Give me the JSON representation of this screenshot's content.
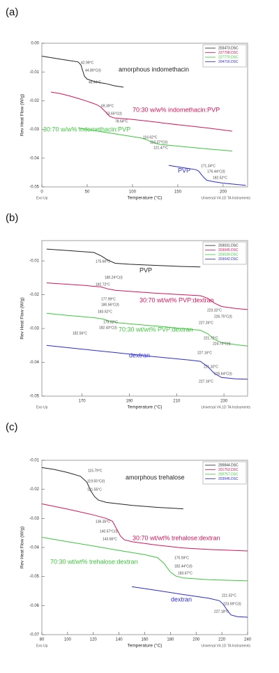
{
  "chart_data": [
    {
      "type": "line",
      "label": "(a)",
      "xlabel": "Temperature (°C)",
      "ylabel": "Rev Heat Flow (W/g)",
      "footer_left": "Exo Up",
      "footer_right": "Universal V4.1D TA Instruments",
      "xlim": [
        0,
        227
      ],
      "xticks": [
        0,
        50,
        100,
        150,
        200
      ],
      "ylim": [
        -0.05,
        0
      ],
      "yticks": [
        {
          "value": 0,
          "label": "0.00"
        },
        {
          "value": -0.01,
          "label": "-0.01"
        },
        {
          "value": -0.02,
          "label": "-0.02"
        },
        {
          "value": -0.03,
          "label": "-0.03"
        },
        {
          "value": -0.04,
          "label": "-0.04"
        },
        {
          "value": -0.05,
          "label": "-0.05"
        }
      ],
      "series": [
        {
          "name": "203473.DSC",
          "color": "#222222",
          "x": [
            0,
            10,
            20,
            30,
            40,
            43,
            45,
            47,
            50,
            60,
            70,
            80,
            90
          ],
          "values": [
            -0.0045,
            -0.005,
            -0.0055,
            -0.006,
            -0.0065,
            -0.0075,
            -0.0095,
            -0.0115,
            -0.0125,
            -0.0135,
            -0.014,
            -0.0148,
            -0.0153
          ]
        },
        {
          "name": "227798.DSC",
          "color": "#d4145a",
          "x": [
            10,
            20,
            30,
            40,
            50,
            60,
            65,
            70,
            75,
            80,
            100,
            120,
            140,
            160,
            180,
            200,
            210
          ],
          "values": [
            -0.017,
            -0.0175,
            -0.0183,
            -0.0192,
            -0.0202,
            -0.0213,
            -0.0222,
            -0.0238,
            -0.0255,
            -0.026,
            -0.0265,
            -0.0272,
            -0.028,
            -0.0287,
            -0.0294,
            -0.0302,
            -0.0306
          ]
        },
        {
          "name": "227770.DSC",
          "color": "#3cc63c",
          "x": [
            40,
            60,
            80,
            100,
            110,
            115,
            120,
            125,
            130,
            150,
            170,
            190,
            210
          ],
          "values": [
            -0.0295,
            -0.0305,
            -0.0315,
            -0.0325,
            -0.033,
            -0.0335,
            -0.0342,
            -0.0348,
            -0.0352,
            -0.0358,
            -0.0364,
            -0.037,
            -0.0375
          ]
        },
        {
          "name": "204716.DSC",
          "color": "#2b2bd0",
          "x": [
            140,
            150,
            160,
            170,
            173,
            176,
            179,
            182,
            190,
            200,
            210,
            220,
            225
          ],
          "values": [
            -0.0425,
            -0.043,
            -0.0435,
            -0.044,
            -0.0445,
            -0.0457,
            -0.0468,
            -0.0477,
            -0.0482,
            -0.0487,
            -0.049,
            -0.0493,
            -0.0495
          ]
        }
      ],
      "annotations": [
        "42.99°C",
        "44.80°C(I)",
        "48.44°C",
        "amorphous indomethacin",
        "69.39°C",
        "73.65°C(I)",
        "78.64°C",
        "70:30 w/w% indomethacin:PVP",
        "116.62°C",
        "118.37°C(I)",
        "121.47°C",
        "30:70 w/w% indomethacin:PVP",
        "171.34°C",
        "176.44°C(I)",
        "182.52°C",
        "PVP"
      ]
    },
    {
      "type": "line",
      "label": "(b)",
      "xlabel": "Temperature (°C)",
      "ylabel": "Rev Heat Flow (W/g)",
      "footer_left": "Exo Up",
      "footer_right": "Universal V4.1D TA Instruments",
      "xlim": [
        153,
        240
      ],
      "xticks": [
        170,
        190,
        210,
        230
      ],
      "ylim": [
        -0.05,
        -0.004
      ],
      "yticks": [
        -0.01,
        -0.02,
        -0.03,
        -0.04,
        -0.05
      ],
      "series": [
        {
          "name": "203031.DSC",
          "color": "#222222",
          "x": [
            155,
            165,
            175,
            178,
            181,
            184,
            190,
            200,
            210,
            220
          ],
          "values": [
            -0.0065,
            -0.007,
            -0.0075,
            -0.0085,
            -0.0098,
            -0.0107,
            -0.011,
            -0.0113,
            -0.0116,
            -0.0118
          ]
        },
        {
          "name": "203045.DSC",
          "color": "#d4145a",
          "x": [
            155,
            170,
            178,
            181,
            184,
            190,
            200,
            210,
            220,
            223,
            226,
            229,
            235,
            240
          ],
          "values": [
            -0.0165,
            -0.0172,
            -0.0177,
            -0.0183,
            -0.0187,
            -0.019,
            -0.0195,
            -0.0199,
            -0.0203,
            -0.021,
            -0.0225,
            -0.0235,
            -0.0241,
            -0.0244
          ]
        },
        {
          "name": "203039.DSC",
          "color": "#3cc63c",
          "x": [
            155,
            165,
            175,
            179,
            182,
            185,
            195,
            205,
            215,
            220,
            223,
            226,
            229,
            235,
            240
          ],
          "values": [
            -0.0255,
            -0.0262,
            -0.0268,
            -0.0272,
            -0.0279,
            -0.0283,
            -0.0289,
            -0.0295,
            -0.0302,
            -0.0305,
            -0.0315,
            -0.0332,
            -0.0342,
            -0.0348,
            -0.0352
          ]
        },
        {
          "name": "203042.DSC",
          "color": "#2b2bd0",
          "x": [
            155,
            170,
            185,
            200,
            215,
            220,
            223,
            226,
            229,
            235,
            240
          ],
          "values": [
            -0.035,
            -0.0361,
            -0.0372,
            -0.0383,
            -0.0393,
            -0.0397,
            -0.0412,
            -0.0433,
            -0.0445,
            -0.0449,
            -0.045
          ]
        }
      ],
      "annotations": [
        "175.60°C",
        "180.24°C(I)",
        "182.72°C",
        "PVP",
        "177.99°C",
        "180.56°C(I)",
        "183.52°C",
        "30:70 wt/wt% PVP:dextran",
        "223.32°C",
        "226.75°C(I)",
        "227.26°C",
        "179.02°C",
        "182.43°C(I)",
        "182.56°C",
        "70:30 wt/wt% PVP:dextran",
        "221.72°C",
        "224.73°C(I)",
        "227.16°C",
        "dextran",
        "221.32°C",
        "225.64°C(I)",
        "227.16°C"
      ]
    },
    {
      "type": "line",
      "label": "(c)",
      "xlabel": "Temperature (°C)",
      "ylabel": "Rev Heat Flow (W/g)",
      "footer_left": "Exo Up",
      "footer_right": "Universal V4.1D TA Instruments",
      "xlim": [
        80,
        240
      ],
      "xticks": [
        80,
        100,
        120,
        140,
        160,
        180,
        200,
        220,
        240
      ],
      "ylim": [
        -0.07,
        -0.01
      ],
      "yticks": [
        -0.01,
        -0.02,
        -0.03,
        -0.04,
        -0.05,
        -0.06,
        -0.07
      ],
      "series": [
        {
          "name": "200844.DSC",
          "color": "#222222",
          "x": [
            80,
            90,
            100,
            110,
            115,
            118,
            121,
            124,
            130,
            150,
            170,
            190
          ],
          "values": [
            -0.0125,
            -0.0132,
            -0.0142,
            -0.0155,
            -0.0175,
            -0.0205,
            -0.0225,
            -0.0237,
            -0.0245,
            -0.0255,
            -0.0262,
            -0.0267
          ]
        },
        {
          "name": "201753.DSC",
          "color": "#d4145a",
          "x": [
            80,
            100,
            120,
            130,
            135,
            138,
            141,
            144,
            150,
            170,
            190,
            210,
            240
          ],
          "values": [
            -0.025,
            -0.0268,
            -0.0288,
            -0.03,
            -0.031,
            -0.0335,
            -0.036,
            -0.0373,
            -0.038,
            -0.0392,
            -0.0402,
            -0.0407,
            -0.0412
          ]
        },
        {
          "name": "200757.DSC",
          "color": "#3cc63c",
          "x": [
            80,
            100,
            120,
            140,
            160,
            170,
            175,
            180,
            184,
            190,
            210,
            240
          ],
          "values": [
            -0.0365,
            -0.038,
            -0.0395,
            -0.041,
            -0.0425,
            -0.0435,
            -0.0455,
            -0.0485,
            -0.0498,
            -0.0505,
            -0.0511,
            -0.0515
          ]
        },
        {
          "name": "203646.DSC",
          "color": "#2b2bd0",
          "x": [
            150,
            170,
            190,
            210,
            218,
            221,
            224,
            227,
            232,
            240
          ],
          "values": [
            -0.0535,
            -0.0548,
            -0.0562,
            -0.0575,
            -0.0583,
            -0.0595,
            -0.0615,
            -0.0632,
            -0.0638,
            -0.064
          ]
        }
      ],
      "annotations": [
        "115.79°C",
        "119.55°C(I)",
        "121.55°C",
        "amorphous trehalose",
        "136.35°C",
        "140.57°C(I)",
        "143.66°C",
        "30:70 wt/wt% trehalose:dextran",
        "175.59°C",
        "182.44°C(I)",
        "183.67°C",
        "70:30 wt/wt% trehalose:dextran",
        "dextran",
        "221.52°C",
        "223.59°C(I)",
        "227.18°C"
      ]
    }
  ]
}
